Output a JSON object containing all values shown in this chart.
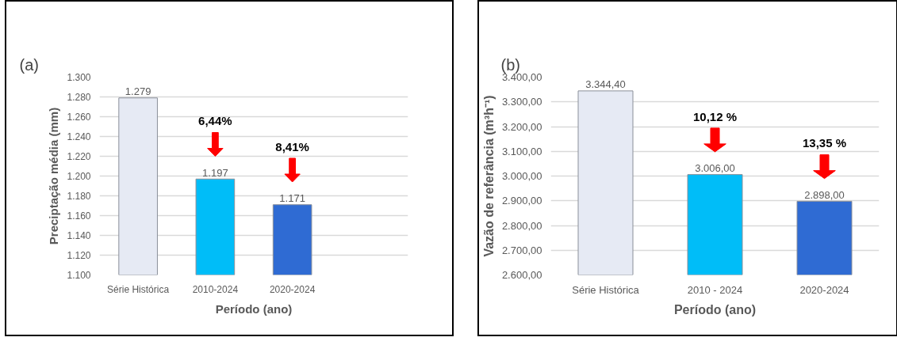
{
  "chart_data": [
    {
      "type": "bar",
      "title": "(a)",
      "xlabel": "Período (ano)",
      "ylabel": "Preciptação média (mm)",
      "categories": [
        "Série Histórica",
        "2010-2024",
        "2020-2024"
      ],
      "values": [
        1279,
        1197,
        1171
      ],
      "value_labels": [
        "1.279",
        "1.197",
        "1.171"
      ],
      "colors": [
        "#e6eaf4",
        "#00bdf8",
        "#2f6bd3"
      ],
      "ylim": [
        1100,
        1300
      ],
      "yticks": [
        {
          "value": 1100,
          "label": "1.100"
        },
        {
          "value": 1120,
          "label": "1.120"
        },
        {
          "value": 1140,
          "label": "1.140"
        },
        {
          "value": 1160,
          "label": "1.160"
        },
        {
          "value": 1180,
          "label": "1.180"
        },
        {
          "value": 1200,
          "label": "1.200"
        },
        {
          "value": 1220,
          "label": "1.220"
        },
        {
          "value": 1240,
          "label": "1.240"
        },
        {
          "value": 1260,
          "label": "1.260"
        },
        {
          "value": 1280,
          "label": "1.280"
        },
        {
          "value": 1300,
          "label": "1.300"
        }
      ],
      "grid": "y",
      "annotations": [
        "6,44%",
        "8,41%"
      ]
    },
    {
      "type": "bar",
      "title": "(b)",
      "xlabel": "Período (ano)",
      "ylabel": "Vazão de referância (m³h⁻¹)",
      "categories": [
        "Série Histórica",
        "2010 - 2024",
        "2020-2024"
      ],
      "values": [
        3344.4,
        3006,
        2898
      ],
      "value_labels": [
        "3.344,40",
        "3.006,00",
        "2.898,00"
      ],
      "colors": [
        "#e6eaf4",
        "#00bdf8",
        "#2f6bd3"
      ],
      "ylim": [
        2600,
        3400
      ],
      "yticks": [
        {
          "value": 2600,
          "label": "2.600,00"
        },
        {
          "value": 2700,
          "label": "2.700,00"
        },
        {
          "value": 2800,
          "label": "2.800,00"
        },
        {
          "value": 2900,
          "label": "2.900,00"
        },
        {
          "value": 3000,
          "label": "3.000,00"
        },
        {
          "value": 3100,
          "label": "3.100,00"
        },
        {
          "value": 3200,
          "label": "3.200,00"
        },
        {
          "value": 3300,
          "label": "3.300,00"
        },
        {
          "value": 3400,
          "label": "3.400,00"
        }
      ],
      "grid": "y",
      "annotations": [
        "10,12 %",
        "13,35 %"
      ]
    }
  ]
}
